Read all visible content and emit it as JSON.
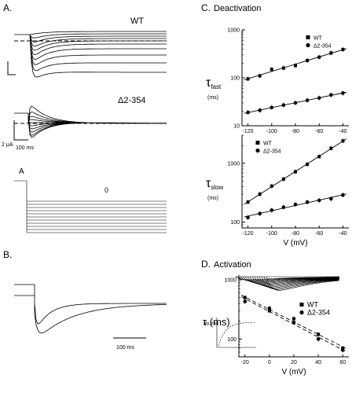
{
  "panels": {
    "a": {
      "label": "A.",
      "wt": "WT",
      "mut": "Δ2-354",
      "scale_current": "2 µA",
      "scale_time": "100 ms",
      "prepulse": "A",
      "holding": "0"
    },
    "b": {
      "label": "B.",
      "scale_time": "100 ms"
    },
    "c": {
      "label": "C.",
      "title": "Deactivation"
    },
    "d": {
      "label": "D.",
      "title": "Activation",
      "inset_ylabel": "g/g_max"
    }
  },
  "chart_data": [
    {
      "type": "scatter",
      "id": "deactivation-fast",
      "ylabel_main": "τ",
      "ylabel_sub": "fast",
      "yunit": "(ms)",
      "yscale": "log",
      "ylim": [
        10,
        1000
      ],
      "yticks": [
        "1000",
        "100",
        "10"
      ],
      "xlim": [
        -125,
        -35
      ],
      "xticks": [
        "-120",
        "-100",
        "-80",
        "-60",
        "-40"
      ],
      "legend_position": "top-right",
      "series": [
        {
          "name": "WT",
          "marker": "square",
          "x": [
            -120,
            -110,
            -100,
            -90,
            -80,
            -70,
            -60,
            -50,
            -40
          ],
          "y": [
            95,
            110,
            150,
            160,
            180,
            230,
            270,
            330,
            390
          ]
        },
        {
          "name": "Δ2-354",
          "marker": "circle",
          "x": [
            -120,
            -110,
            -100,
            -90,
            -80,
            -70,
            -60,
            -50,
            -40
          ],
          "y": [
            19,
            21,
            24,
            27,
            30,
            34,
            38,
            44,
            48
          ]
        }
      ]
    },
    {
      "type": "scatter",
      "id": "deactivation-slow",
      "ylabel_main": "τ",
      "ylabel_sub": "slow",
      "yunit": "(ms)",
      "yscale": "log",
      "ylim": [
        80,
        3000
      ],
      "yticks": [
        "1000",
        "100"
      ],
      "xlim": [
        -125,
        -35
      ],
      "xticks": [
        "-120",
        "-100",
        "-80",
        "-60",
        "-40"
      ],
      "xlabel": "V (mV)",
      "legend_position": "top-left",
      "series": [
        {
          "name": "WT",
          "marker": "square",
          "x": [
            -120,
            -110,
            -100,
            -90,
            -80,
            -70,
            -60,
            -50,
            -40
          ],
          "y": [
            220,
            300,
            410,
            540,
            720,
            960,
            1300,
            1800,
            2400
          ]
        },
        {
          "name": "Δ2-354",
          "marker": "circle",
          "x": [
            -120,
            -110,
            -100,
            -90,
            -80,
            -70,
            -60,
            -50,
            -40
          ],
          "y": [
            120,
            140,
            160,
            180,
            200,
            220,
            235,
            250,
            290
          ]
        }
      ]
    },
    {
      "type": "scatter",
      "id": "activation",
      "ylabel": "τ (ms)",
      "yscale": "log",
      "ylim": [
        50,
        1200
      ],
      "yticks": [
        "1000",
        "100"
      ],
      "xlim": [
        -25,
        65
      ],
      "xticks": [
        "-20",
        "0",
        "20",
        "40",
        "60"
      ],
      "xlabel": "V (mV)",
      "legend_position": "right",
      "series": [
        {
          "name": "WT",
          "marker": "square",
          "x": [
            -20,
            0,
            20,
            40,
            60
          ],
          "y": [
            500,
            300,
            220,
            120,
            70
          ]
        },
        {
          "name": "Δ2-354",
          "marker": "circle",
          "x": [
            -20,
            0,
            20,
            40,
            60
          ],
          "y": [
            430,
            330,
            190,
            100,
            65
          ]
        }
      ]
    }
  ]
}
